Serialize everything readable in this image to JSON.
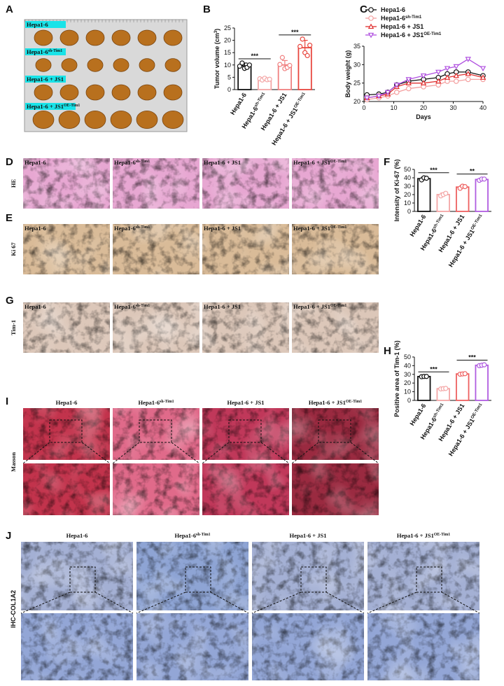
{
  "panel_letters": [
    "A",
    "B",
    "C",
    "D",
    "E",
    "F",
    "G",
    "H",
    "I",
    "J"
  ],
  "groups": [
    {
      "base": "Hepa1-6",
      "sup": null
    },
    {
      "base": "Hepa1-6",
      "sup": "sh-Tim1"
    },
    {
      "base": "Hepa1-6 + JS1",
      "sup": null
    },
    {
      "base": "Hepa1-6 + JS1",
      "sup": "OE-Tim1"
    }
  ],
  "row_labels": {
    "he": "HE",
    "ki67": "Ki 67",
    "tim1": "Tim-1",
    "masson": "Masson",
    "col1a2": "IHC-COL1A2"
  },
  "chart_data": [
    {
      "type": "bar",
      "ylabel": [
        "Tumor volume (cm",
        "3",
        ")"
      ],
      "categories": [
        "Hepa1-6",
        "Hepa1-6",
        "Hepa1-6 + JS1",
        "Hepa1-6 + JS1"
      ],
      "category_sups": [
        null,
        "sh-Tim1",
        null,
        "OE-Tim1"
      ],
      "values": [
        9.6,
        4.2,
        10.0,
        17.0
      ],
      "errors": [
        1.2,
        0.5,
        1.8,
        3.0
      ],
      "points": [
        [
          9.5,
          10.8,
          8.6,
          9.0,
          10.0
        ],
        [
          4.4,
          3.9,
          4.6,
          4.0,
          4.2
        ],
        [
          10.2,
          13.0,
          8.5,
          9.0,
          9.8
        ],
        [
          17.5,
          20.5,
          15.0,
          13.8,
          18.0
        ]
      ],
      "colors": [
        "#111111",
        "#f4a6a6",
        "#f08080",
        "#e8473f"
      ],
      "ylim": [
        0,
        25
      ],
      "yticks": [
        0,
        5,
        10,
        15,
        20,
        25
      ],
      "annotations": [
        {
          "text": "***",
          "from": 0,
          "to": 1
        },
        {
          "text": "***",
          "from": 2,
          "to": 3
        }
      ]
    },
    {
      "type": "line",
      "xlabel": "Days",
      "ylabel": "Body weight (g)",
      "x": [
        1,
        5,
        8,
        11,
        15,
        20,
        25,
        28,
        31,
        35,
        40
      ],
      "series": [
        {
          "name": "Hepa1-6",
          "name_sup": null,
          "color": "#111111",
          "marker": "circle",
          "values": [
            21.8,
            22,
            22.5,
            24.5,
            25.5,
            26,
            26.5,
            27.5,
            28,
            28,
            27
          ]
        },
        {
          "name": "Hepa1-6",
          "name_sup": "sh-Tim1",
          "color": "#f4a0a0",
          "marker": "circle",
          "values": [
            20.5,
            21,
            21.5,
            22.5,
            23.5,
            24,
            24.5,
            25.5,
            25.5,
            26,
            26
          ]
        },
        {
          "name": "Hepa1-6 + JS1",
          "name_sup": null,
          "color": "#e03030",
          "marker": "triangle",
          "values": [
            21,
            21.5,
            22,
            24,
            25,
            25,
            25.5,
            26.5,
            27,
            27.5,
            26.5
          ]
        },
        {
          "name": "Hepa1-6 + JS1",
          "name_sup": "OE-Tim1",
          "color": "#b050e0",
          "marker": "triangle-down",
          "values": [
            21,
            21.5,
            22.5,
            24.5,
            26,
            27,
            28,
            29,
            29.5,
            31.5,
            29
          ]
        }
      ],
      "xlim": [
        0,
        40
      ],
      "xticks": [
        0,
        10,
        20,
        30,
        40
      ],
      "ylim": [
        20,
        35
      ],
      "yticks": [
        20,
        25,
        30,
        35
      ]
    },
    {
      "type": "bar",
      "ylabel": [
        "Intensity of Ki-67 (%)"
      ],
      "categories": [
        "Hepa1-6",
        "Hepa1-6",
        "Hepa1-6 + JS1",
        "Hepa1-6 + JS1"
      ],
      "category_sups": [
        null,
        "sh-Tim1",
        null,
        "OE-Tim1"
      ],
      "values": [
        39,
        20,
        29,
        38
      ],
      "errors": [
        2,
        2,
        2,
        1.5
      ],
      "points": [
        [
          37.5,
          40,
          39.5
        ],
        [
          18.5,
          20,
          21.5
        ],
        [
          27.5,
          30,
          29.5
        ],
        [
          37,
          38.5,
          38.5
        ]
      ],
      "colors": [
        "#111111",
        "#f4a6a6",
        "#ee6060",
        "#b05ce0"
      ],
      "ylim": [
        0,
        50
      ],
      "yticks": [
        0,
        10,
        20,
        30,
        40,
        50
      ],
      "annotations": [
        {
          "text": "***",
          "from": 0,
          "to": 1
        },
        {
          "text": "**",
          "from": 2,
          "to": 3
        }
      ]
    },
    {
      "type": "bar",
      "ylabel": [
        "Positive area of Tim-1 (%)"
      ],
      "categories": [
        "Hepa1-6",
        "Hepa1-6",
        "Hepa1-6 + JS1",
        "Hepa1-6 + JS1"
      ],
      "category_sups": [
        null,
        "sh-Tim1",
        null,
        "OE-Tim1"
      ],
      "values": [
        27.5,
        13.5,
        30.5,
        40.5
      ],
      "errors": [
        0.5,
        0.6,
        0.8,
        1.0
      ],
      "points": [
        [
          27.3,
          27.6,
          27.6
        ],
        [
          13.2,
          13.5,
          13.8
        ],
        [
          30.2,
          30.5,
          30.8
        ],
        [
          40,
          40.5,
          41
        ]
      ],
      "colors": [
        "#111111",
        "#f4a6a6",
        "#ee6060",
        "#b05ce0"
      ],
      "ylim": [
        0,
        50
      ],
      "yticks": [
        0,
        10,
        20,
        30,
        40,
        50
      ],
      "annotations": [
        {
          "text": "***",
          "from": 0,
          "to": 1
        },
        {
          "text": "***",
          "from": 2,
          "to": 3
        }
      ]
    }
  ]
}
